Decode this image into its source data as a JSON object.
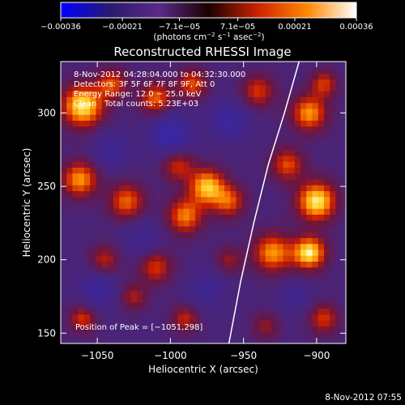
{
  "chart_data": {
    "type": "heatmap",
    "title": "Reconstructed RHESSI Image",
    "xlabel": "Heliocentric X (arcsec)",
    "ylabel": "Heliocentric Y (arcsec)",
    "xlim": [
      -1075,
      -880
    ],
    "ylim": [
      143,
      335
    ],
    "x_ticks": [
      -1050,
      -1000,
      -950,
      -900
    ],
    "x_tick_labels": [
      "−1050",
      "−1000",
      "−950",
      "−900"
    ],
    "y_ticks": [
      150,
      200,
      250,
      300
    ],
    "y_tick_labels": [
      "150",
      "200",
      "250",
      "300"
    ],
    "colorbar": {
      "min": -0.00036,
      "max": 0.00036,
      "ticks": [
        -0.00036,
        -0.00021,
        -7.1e-05,
        7.1e-05,
        0.00021,
        0.00036
      ],
      "tick_labels": [
        "−0.00036",
        "−0.00021",
        "−7.1e−05",
        "7.1e−05",
        "0.00021",
        "0.00036"
      ],
      "colors": [
        "#0000ff",
        "#2a1a70",
        "#5a2a8a",
        "#1a0000",
        "#cc2200",
        "#ff8800",
        "#ffffff"
      ],
      "unit_parts": [
        "(photons cm",
        "−2",
        " s",
        "−1",
        " asec",
        "−2",
        ")"
      ]
    },
    "annotations": [
      "8-Nov-2012 04:28:04.000 to 04:32:30.000",
      "Detectors: 3F 5F 6F 7F 8F 9F, Att 0",
      "Energy Range: 12.0 − 25.0 keV",
      "Clean   Total counts: 5.23E+03"
    ],
    "peak_label": "Position of Peak = [−1051,298]",
    "limb_curve": [
      [
        -960,
        143
      ],
      [
        -952,
        185
      ],
      [
        -943,
        225
      ],
      [
        -933,
        265
      ],
      [
        -922,
        300
      ],
      [
        -912,
        335
      ]
    ],
    "grid": false,
    "sources": [
      {
        "x": -1060,
        "y": 305,
        "v": 0.00034,
        "r": 14
      },
      {
        "x": -1040,
        "y": 320,
        "v": 0.0002,
        "r": 10
      },
      {
        "x": -1010,
        "y": 310,
        "v": 0.00022,
        "r": 11
      },
      {
        "x": -985,
        "y": 320,
        "v": 0.0002,
        "r": 10
      },
      {
        "x": -1062,
        "y": 255,
        "v": 0.00026,
        "r": 12
      },
      {
        "x": -1030,
        "y": 240,
        "v": 0.00022,
        "r": 12
      },
      {
        "x": -995,
        "y": 265,
        "v": 0.00018,
        "r": 11
      },
      {
        "x": -975,
        "y": 250,
        "v": 0.0003,
        "r": 12
      },
      {
        "x": -990,
        "y": 230,
        "v": 0.00024,
        "r": 12
      },
      {
        "x": -960,
        "y": 240,
        "v": 0.0002,
        "r": 11
      },
      {
        "x": -1045,
        "y": 200,
        "v": 0.00015,
        "r": 10
      },
      {
        "x": -1010,
        "y": 195,
        "v": 0.00018,
        "r": 11
      },
      {
        "x": -960,
        "y": 200,
        "v": 0.00012,
        "r": 9
      },
      {
        "x": -930,
        "y": 205,
        "v": 0.00026,
        "r": 13
      },
      {
        "x": -905,
        "y": 205,
        "v": 0.00034,
        "r": 11
      },
      {
        "x": -900,
        "y": 240,
        "v": 0.00034,
        "r": 13
      },
      {
        "x": -920,
        "y": 265,
        "v": 0.0002,
        "r": 11
      },
      {
        "x": -905,
        "y": 300,
        "v": 0.00026,
        "r": 12
      },
      {
        "x": -895,
        "y": 320,
        "v": 0.00018,
        "r": 9
      },
      {
        "x": -940,
        "y": 315,
        "v": 0.00018,
        "r": 11
      },
      {
        "x": -1060,
        "y": 160,
        "v": 0.00018,
        "r": 9
      },
      {
        "x": -1025,
        "y": 175,
        "v": 0.00014,
        "r": 9
      },
      {
        "x": -990,
        "y": 160,
        "v": 0.00016,
        "r": 9
      },
      {
        "x": -935,
        "y": 155,
        "v": 0.00012,
        "r": 9
      },
      {
        "x": -895,
        "y": 160,
        "v": 0.00018,
        "r": 10
      },
      {
        "x": -1000,
        "y": 285,
        "v": -0.00021,
        "r": 14
      },
      {
        "x": -1040,
        "y": 275,
        "v": -0.00012,
        "r": 12
      },
      {
        "x": -960,
        "y": 295,
        "v": -0.00016,
        "r": 13
      },
      {
        "x": -1020,
        "y": 215,
        "v": -0.0001,
        "r": 12
      },
      {
        "x": -975,
        "y": 180,
        "v": -0.00012,
        "r": 12
      },
      {
        "x": -1050,
        "y": 180,
        "v": -0.00015,
        "r": 12
      },
      {
        "x": -915,
        "y": 175,
        "v": -0.0001,
        "r": 10
      }
    ]
  },
  "footer": {
    "timestamp": "8-Nov-2012 07:55"
  }
}
